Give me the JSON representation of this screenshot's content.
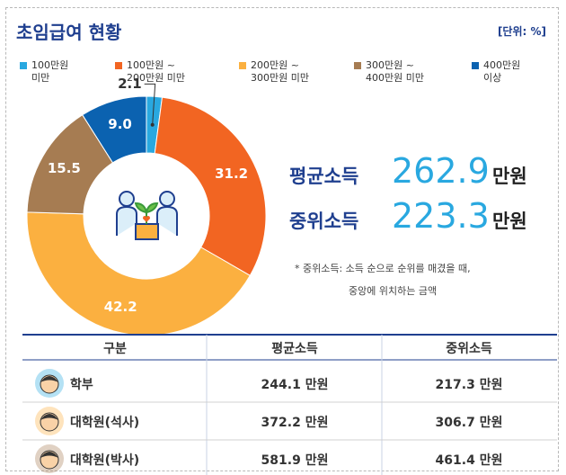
{
  "chart_data": {
    "type": "pie",
    "title": "초임급여 현황",
    "unit": "[단위: %]",
    "categories": [
      "100만원\n미만",
      "100만원 ~\n200만원 미만",
      "200만원 ~\n300만원 미만",
      "300만원 ~\n400만원 미만",
      "400만원\n이상"
    ],
    "values": [
      2.1,
      31.2,
      42.2,
      15.5,
      9.0
    ],
    "value_labels": [
      "2.1",
      "31.2",
      "42.2",
      "15.5",
      "9.0"
    ],
    "colors": [
      "#29a8e0",
      "#f26522",
      "#fbb040",
      "#a67c52",
      "#0b62b0"
    ]
  },
  "stats": [
    {
      "label": "평균소득",
      "value": "262.9",
      "unit": "만원"
    },
    {
      "label": "중위소득",
      "value": "223.3",
      "unit": "만원"
    }
  ],
  "note": [
    "* 중위소득: 소득 순으로 순위를 매겼을 때,",
    "중앙에 위치하는 금액"
  ],
  "table": {
    "header": [
      "구분",
      "평균소득",
      "중위소득"
    ],
    "rows": [
      [
        "학부",
        "244.1 만원",
        "217.3 만원"
      ],
      [
        "대학원(석사)",
        "372.2 만원",
        "306.7 만원"
      ],
      [
        "대학원(박사)",
        "581.9 만원",
        "461.4 만원"
      ]
    ]
  }
}
